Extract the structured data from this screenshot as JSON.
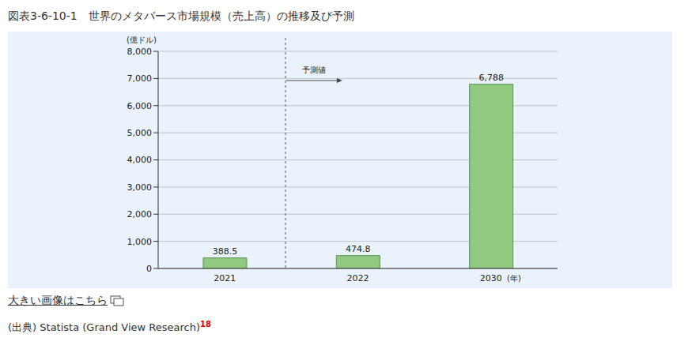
{
  "chart_data": {
    "type": "bar",
    "title": "図表3-6-10-1　世界のメタバース市場規模（売上高）の推移及び予測",
    "ylabel": "(億ドル)",
    "xlabel": "(年)",
    "categories": [
      "2021",
      "2022",
      "2030"
    ],
    "values": [
      388.5,
      474.8,
      6788
    ],
    "value_labels": [
      "388.5",
      "474.8",
      "6,788"
    ],
    "data_labels": true,
    "color": "#8fca80",
    "ylim": [
      0,
      8000
    ],
    "yticks": [
      0,
      {
        "value": 1000,
        "label": "1,000"
      },
      {
        "value": 2000,
        "label": "2,000"
      },
      {
        "value": 3000,
        "label": "3,000"
      },
      {
        "value": 4000,
        "label": "4,000"
      },
      {
        "value": 5000,
        "label": "5,000"
      },
      {
        "value": 6000,
        "label": "6,000"
      },
      {
        "value": 7000,
        "label": "7,000"
      },
      {
        "value": 8000,
        "label": "8,000"
      }
    ],
    "grid": true,
    "annotations": [
      "予測値"
    ],
    "footnotes": [
      {
        "text": "大きい画像はこちら"
      },
      {
        "text": "(出典) Statista (Grand View Research)",
        "ref": "18"
      }
    ]
  }
}
